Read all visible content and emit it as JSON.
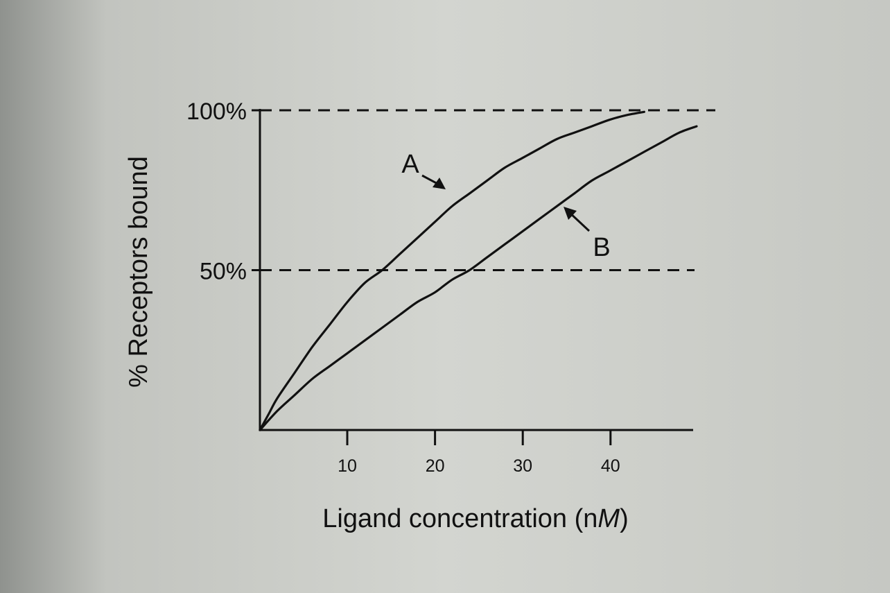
{
  "chart_data": {
    "type": "line",
    "xlabel": "Ligand concentration (nM)",
    "xlabel_parts": [
      "Ligand concentration (n",
      "M",
      ")"
    ],
    "ylabel": "% Receptors bound",
    "xlim": [
      0,
      50
    ],
    "ylim": [
      0,
      100
    ],
    "x_ticks": [
      10,
      20,
      30,
      40
    ],
    "x_tick_labels": [
      "10",
      "20",
      "30",
      "40"
    ],
    "y_tick_labels": [
      {
        "value": 50,
        "label": "50%"
      },
      {
        "value": 100,
        "label": "100%"
      }
    ],
    "reference_lines": [
      {
        "y": 50,
        "style": "dashed"
      },
      {
        "y": 100,
        "style": "dashed"
      }
    ],
    "series": [
      {
        "name": "A",
        "x": [
          0,
          1,
          2,
          4,
          6,
          8,
          10,
          12,
          14,
          16,
          18,
          20,
          22,
          24,
          26,
          28,
          30,
          32,
          34,
          36,
          38,
          40,
          42,
          44
        ],
        "y": [
          0,
          5,
          10,
          18,
          26,
          33,
          40,
          46,
          50,
          55,
          60,
          65,
          70,
          74,
          78,
          82,
          85,
          88,
          91,
          93,
          95,
          97,
          98.5,
          99.5
        ]
      },
      {
        "name": "B",
        "x": [
          0,
          2,
          4,
          6,
          8,
          10,
          12,
          14,
          16,
          18,
          20,
          22,
          24,
          26,
          28,
          30,
          32,
          34,
          36,
          38,
          40,
          42,
          44,
          46,
          48,
          50
        ],
        "y": [
          0,
          6,
          11,
          16,
          20,
          24,
          28,
          32,
          36,
          40,
          43,
          47,
          50,
          54,
          58,
          62,
          66,
          70,
          74,
          78,
          81,
          84,
          87,
          90,
          93,
          95
        ]
      }
    ],
    "annotations": [
      {
        "text": "A",
        "points_to": "A"
      },
      {
        "text": "B",
        "points_to": "B"
      }
    ]
  }
}
